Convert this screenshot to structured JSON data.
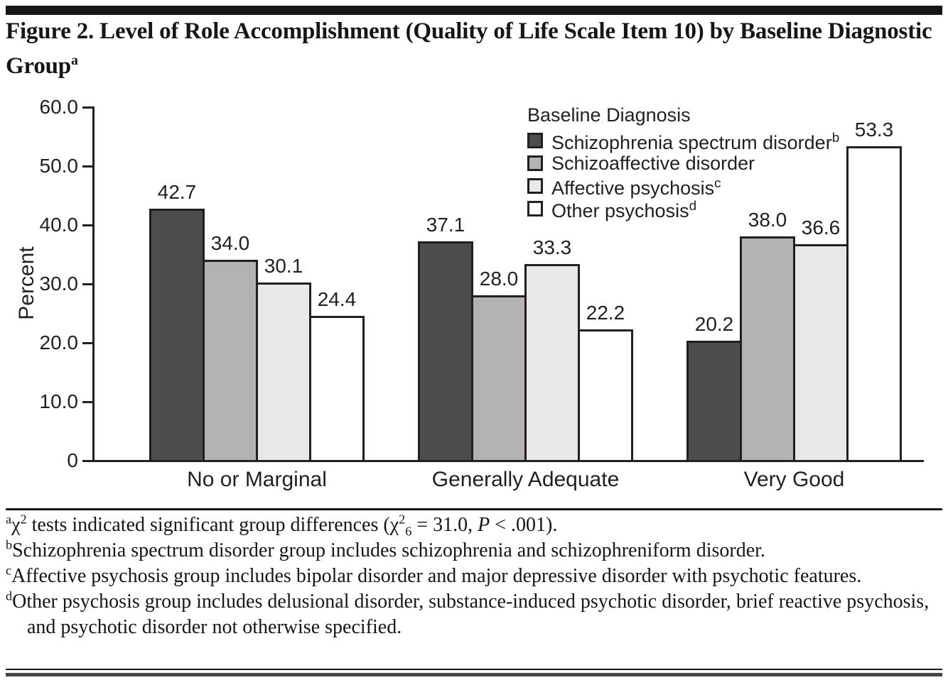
{
  "page": {
    "title": "Figure 2. Level of Role Accomplishment (Quality of Life Scale Item 10) by Baseline Diagnostic Group",
    "title_superscript": "a"
  },
  "chart_data": {
    "type": "bar",
    "title": "Figure 2. Level of Role Accomplishment (Quality of Life Scale Item 10) by Baseline Diagnostic Group",
    "xlabel": "",
    "ylabel": "Percent",
    "ylim": [
      0,
      60
    ],
    "yticks": [
      0,
      10,
      20,
      30,
      40,
      50,
      60
    ],
    "ytick_labels": [
      "0",
      "10.0",
      "20.0",
      "30.0",
      "40.0",
      "50.0",
      "60.0"
    ],
    "grid": false,
    "legend_title": "Baseline Diagnosis",
    "legend_position": "top-right-inside",
    "categories": [
      "No or Marginal",
      "Generally Adequate",
      "Very Good"
    ],
    "series": [
      {
        "name": "Schizophrenia spectrum disorder",
        "superscript": "b",
        "color": "#4d4d4d",
        "values": [
          42.7,
          37.1,
          20.2
        ]
      },
      {
        "name": "Schizoaffective disorder",
        "superscript": "",
        "color": "#b3b3b3",
        "values": [
          34.0,
          28.0,
          38.0
        ]
      },
      {
        "name": "Affective psychosis",
        "superscript": "c",
        "color": "#e8e8e8",
        "values": [
          30.1,
          33.3,
          36.6
        ]
      },
      {
        "name": "Other psychosis",
        "superscript": "d",
        "color": "#ffffff",
        "values": [
          24.4,
          22.2,
          53.3
        ]
      }
    ],
    "bar_value_labels": [
      [
        "42.7",
        "37.1",
        "20.2"
      ],
      [
        "34.0",
        "28.0",
        "38.0"
      ],
      [
        "30.1",
        "33.3",
        "36.6"
      ],
      [
        "24.4",
        "22.2",
        "53.3"
      ]
    ],
    "colors": {
      "axis": "#231f20",
      "bar_border": "#231f20",
      "text": "#231f20"
    }
  },
  "footnotes": [
    {
      "marker": "a",
      "segments": [
        {
          "text": "χ"
        },
        {
          "sup": "2"
        },
        {
          "text": " tests indicated significant group differences ("
        },
        {
          "text": "χ"
        },
        {
          "sup": "2"
        },
        {
          "sub": "6"
        },
        {
          "text": " = 31.0, "
        },
        {
          "italic": "P"
        },
        {
          "text": " < .001)."
        }
      ]
    },
    {
      "marker": "b",
      "segments": [
        {
          "text": "Schizophrenia spectrum disorder group includes schizophrenia and schizophreniform disorder."
        }
      ]
    },
    {
      "marker": "c",
      "segments": [
        {
          "text": "Affective psychosis group includes bipolar disorder and major depressive disorder with psychotic features."
        }
      ]
    },
    {
      "marker": "d",
      "segments": [
        {
          "text": "Other psychosis group includes delusional disorder, substance-induced psychotic disorder, brief reactive psychosis, and psychotic disorder not otherwise specified."
        }
      ]
    }
  ]
}
